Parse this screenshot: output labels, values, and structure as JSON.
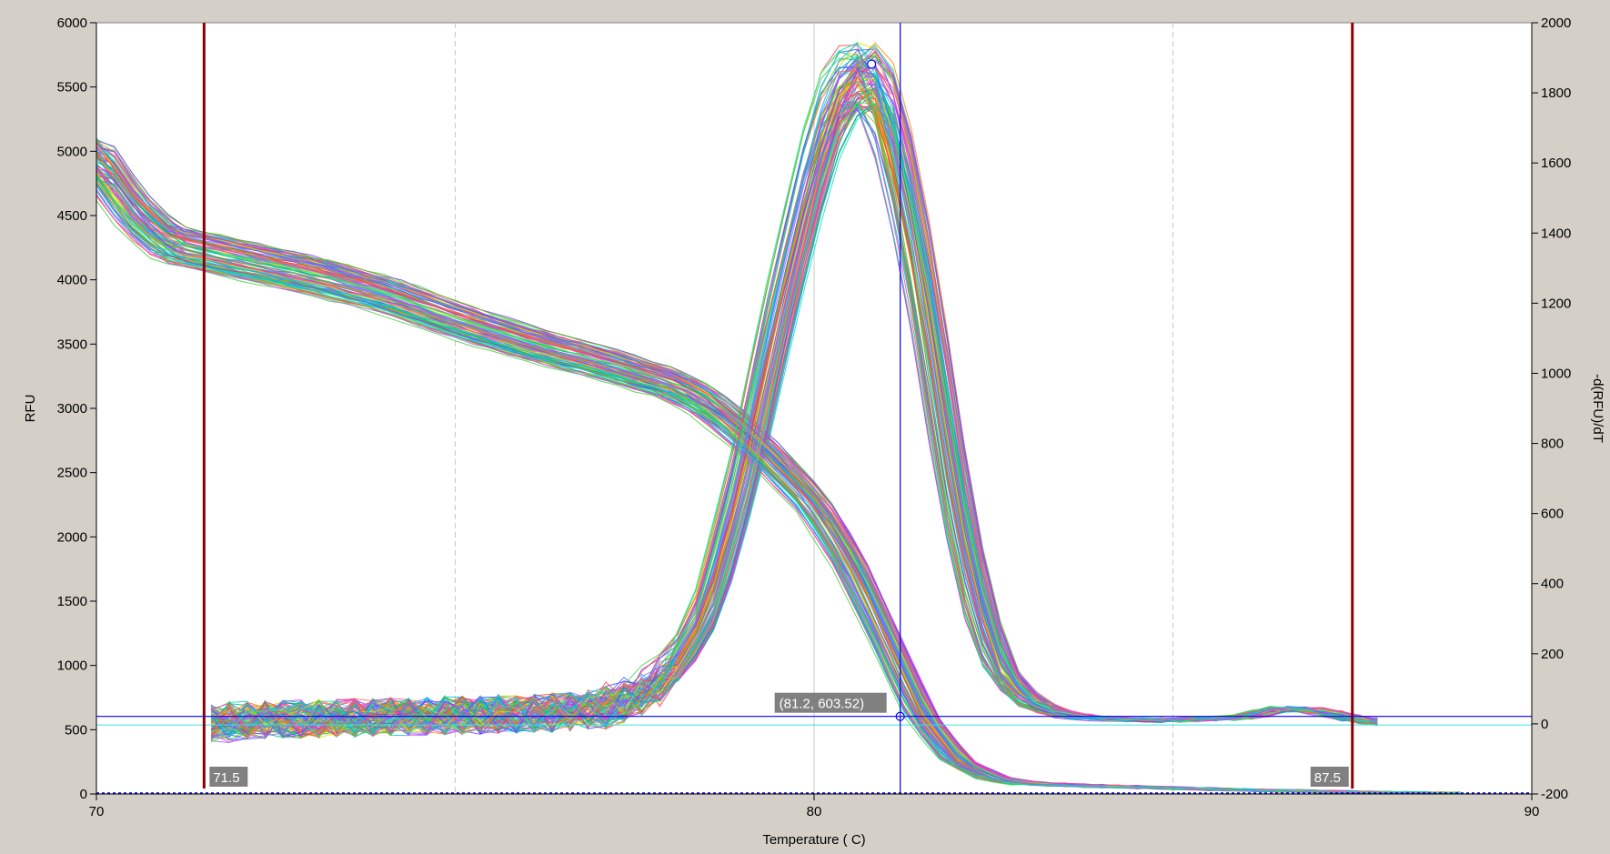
{
  "chart_data": {
    "type": "line",
    "title": "",
    "xlabel": "Temperature ( C)",
    "ylabel_left": "RFU",
    "ylabel_right": "-d(RFU)/dT",
    "xlim": [
      70,
      90
    ],
    "ylim_left": [
      0,
      6000
    ],
    "ylim_right": [
      -200,
      2000
    ],
    "x_ticks": [
      "70",
      "80",
      "90"
    ],
    "y_left_ticks": [
      "0",
      "500",
      "1000",
      "1500",
      "2000",
      "2500",
      "3000",
      "3500",
      "4000",
      "4500",
      "5000",
      "5500",
      "6000"
    ],
    "y_right_ticks": [
      "-200",
      "0",
      "200",
      "400",
      "600",
      "800",
      "1000",
      "1200",
      "1400",
      "1600",
      "1800",
      "2000"
    ],
    "grid": "vertical",
    "vertical_gridlines": [
      75,
      80,
      85
    ],
    "markers": {
      "left_bound": {
        "x": 71.5,
        "label": "71.5"
      },
      "right bound": {
        "x": 87.5,
        "label": "87.5"
      },
      "right_bound": {
        "x": 87.5,
        "label": "87.5"
      }
    },
    "cursor": {
      "x": 81.2,
      "y": 603.52,
      "label": "(81.2, 603.52)"
    },
    "series_count": 96,
    "series_colors": [
      "#ff4040",
      "#ff8000",
      "#e0e000",
      "#40d040",
      "#00c080",
      "#00c0e0",
      "#4060ff",
      "#8040ff",
      "#e040e0",
      "#ff40a0",
      "#80c000",
      "#20a0ff",
      "#ff6060",
      "#60e060",
      "#a060ff",
      "#00e0c0"
    ],
    "melt_curve": {
      "axis": "left",
      "x": [
        70,
        70.5,
        71,
        72,
        73,
        74,
        75,
        76,
        77,
        78,
        78.5,
        79,
        79.5,
        80,
        80.5,
        81,
        81.5,
        82,
        82.5,
        83,
        84,
        85,
        86,
        87,
        88,
        89
      ],
      "y": [
        4950,
        4550,
        4300,
        4170,
        4050,
        3900,
        3700,
        3520,
        3370,
        3200,
        3050,
        2820,
        2550,
        2250,
        1800,
        1200,
        600,
        250,
        120,
        80,
        60,
        45,
        30,
        20,
        10,
        5
      ]
    },
    "derivative_curve": {
      "axis": "right",
      "x": [
        71.6,
        72,
        73,
        74,
        75,
        76,
        77,
        77.5,
        78,
        78.5,
        79,
        79.5,
        80,
        80.3,
        80.6,
        80.8,
        81,
        81.2,
        81.5,
        81.8,
        82,
        82.3,
        82.6,
        83,
        83.5,
        84,
        85,
        86,
        86.5,
        87,
        87.5,
        88
      ],
      "y": [
        0,
        10,
        15,
        20,
        25,
        30,
        40,
        80,
        140,
        320,
        700,
        1180,
        1620,
        1820,
        1895,
        1880,
        1780,
        1600,
        1280,
        880,
        620,
        330,
        150,
        60,
        25,
        15,
        10,
        20,
        45,
        40,
        15,
        0
      ]
    }
  }
}
